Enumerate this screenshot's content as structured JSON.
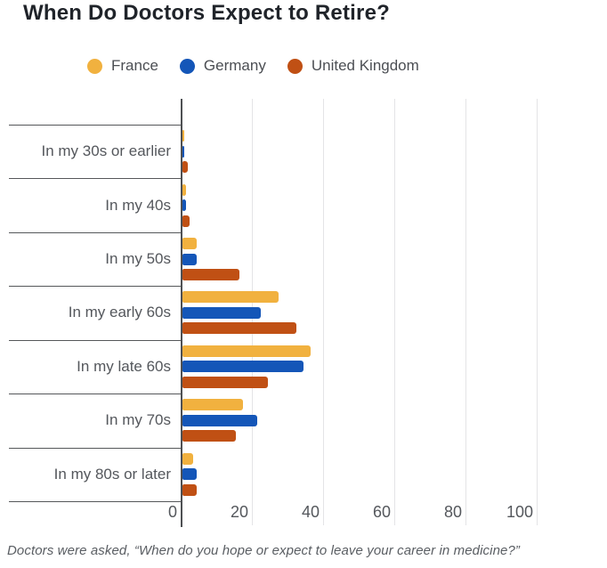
{
  "title": "When Do Doctors Expect to Retire?",
  "caption": "Doctors were asked, “When do you hope or expect to leave your career in medicine?”",
  "colors": {
    "france": "#F1B13F",
    "germany": "#1456B8",
    "united_kingdom": "#C05014",
    "axis": "#4e5053",
    "grid": "#e4e4e6",
    "text": "#54575c",
    "title_text": "#20242a"
  },
  "legend": {
    "items": [
      {
        "label": "France",
        "color": "#F1B13F"
      },
      {
        "label": "Germany",
        "color": "#1456B8"
      },
      {
        "label": "United Kingdom",
        "color": "#C05014"
      }
    ]
  },
  "chart_data": {
    "type": "bar",
    "orientation": "horizontal",
    "title": "When Do Doctors Expect to Retire?",
    "categories": [
      "In my 30s or earlier",
      "In my 40s",
      "In my 50s",
      "In my early 60s",
      "In my late 60s",
      "In my 70s",
      "In my 80s or later"
    ],
    "series": [
      {
        "name": "France",
        "color": "#F1B13F",
        "values": [
          0.5,
          1,
          4,
          27,
          36,
          17,
          3
        ]
      },
      {
        "name": "Germany",
        "color": "#1456B8",
        "values": [
          0.5,
          1,
          4,
          22,
          34,
          21,
          4
        ]
      },
      {
        "name": "United Kingdom",
        "color": "#C05014",
        "values": [
          1.5,
          2,
          16,
          32,
          24,
          15,
          4
        ]
      }
    ],
    "x_ticks": [
      "0",
      "20",
      "40",
      "60",
      "80",
      "100"
    ],
    "xlim": [
      0,
      100
    ],
    "unit": "percent",
    "grid": "vertical-light",
    "legend_position": "top"
  }
}
